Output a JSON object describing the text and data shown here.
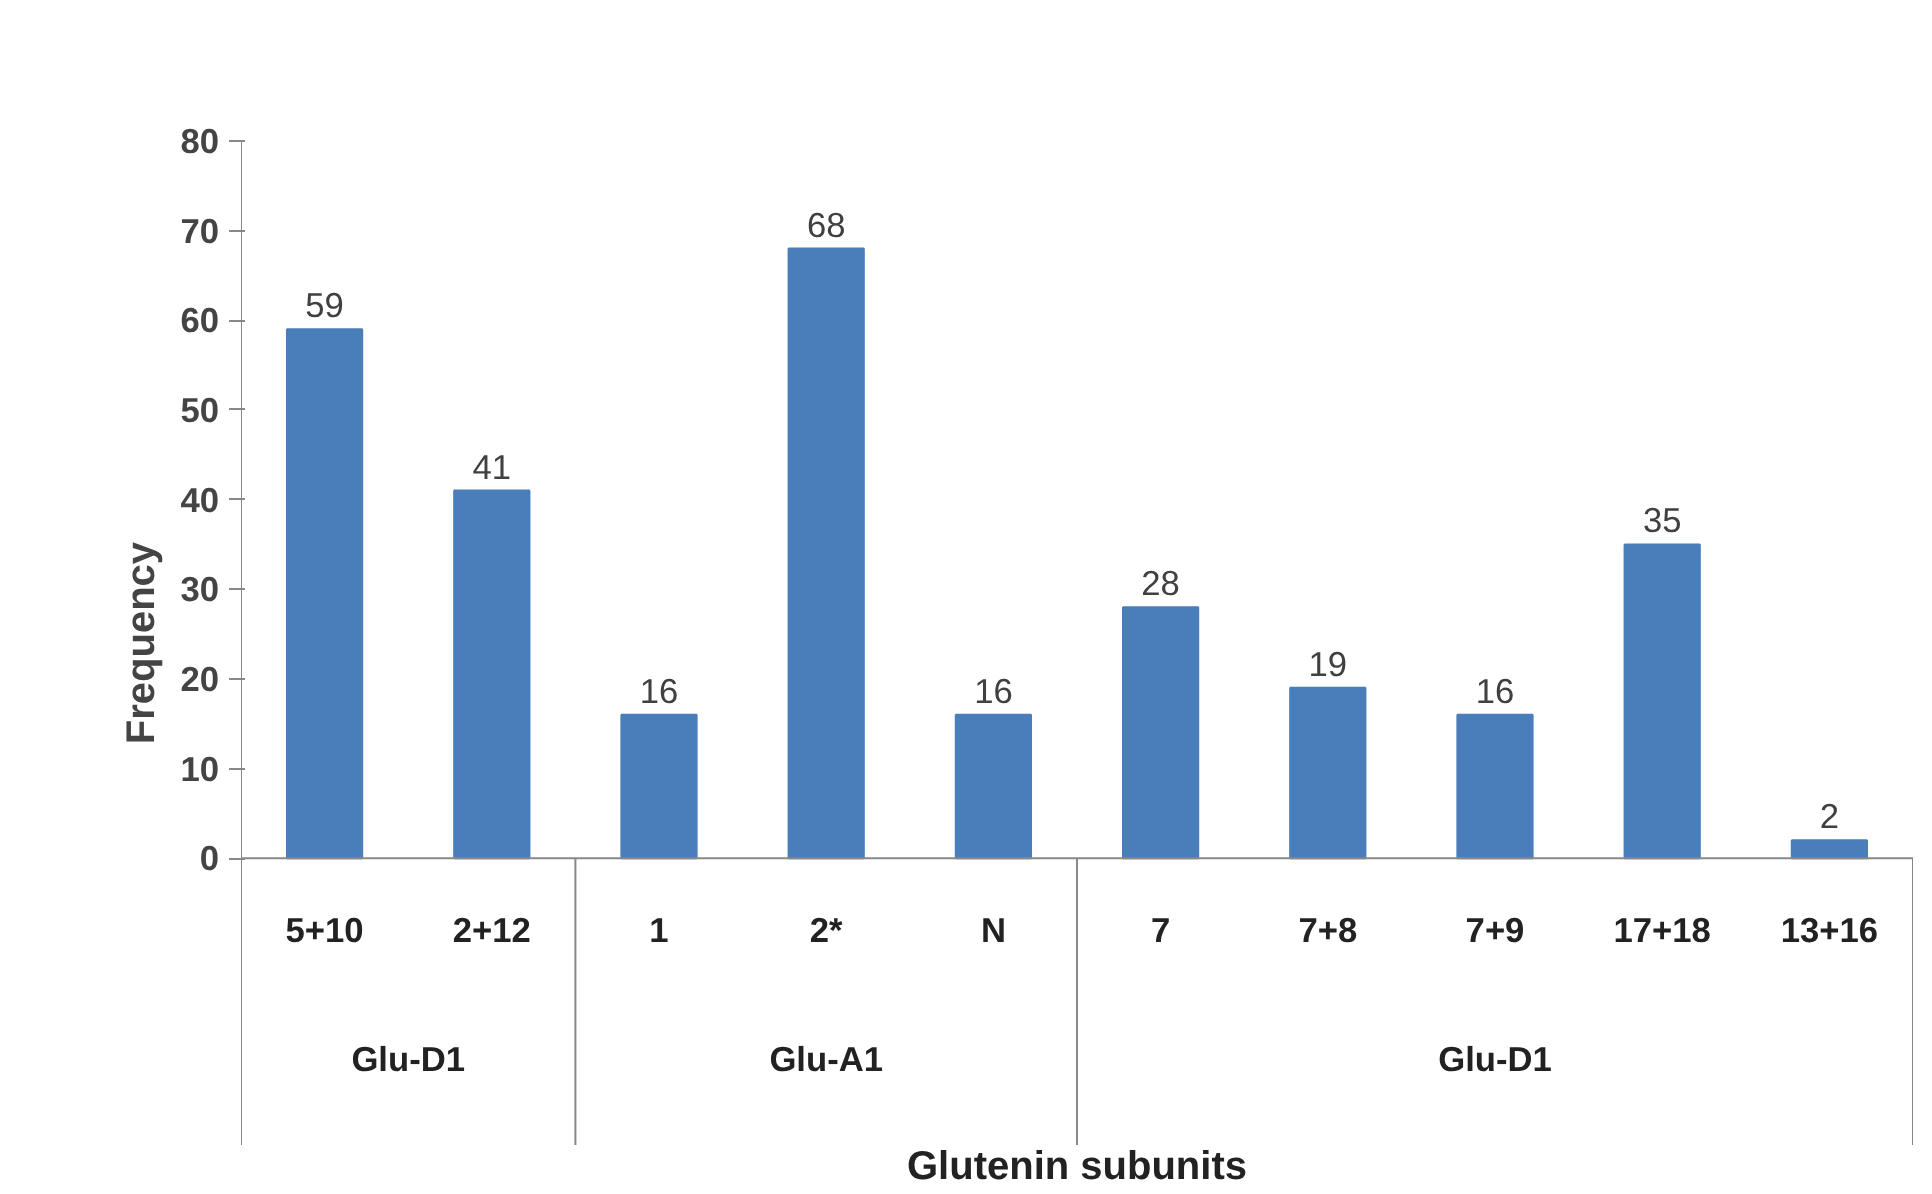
{
  "chart_data": {
    "type": "bar",
    "xlabel": "Glutenin subunits",
    "ylabel": "Frequency",
    "categories": [
      "5+10",
      "2+12",
      "1",
      "2*",
      "N",
      "7",
      "7+8",
      "7+9",
      "17+18",
      "13+16"
    ],
    "values": [
      59,
      41,
      16,
      68,
      16,
      28,
      19,
      16,
      35,
      2
    ],
    "color": "#4a7ebb",
    "ylim": [
      0,
      80
    ],
    "yticks": [
      0,
      10,
      20,
      30,
      40,
      50,
      60,
      70,
      80
    ],
    "data_labels": true,
    "grid": false,
    "annotations": [
      "Glu-D1",
      "Glu-A1",
      "Glu-D1"
    ]
  }
}
